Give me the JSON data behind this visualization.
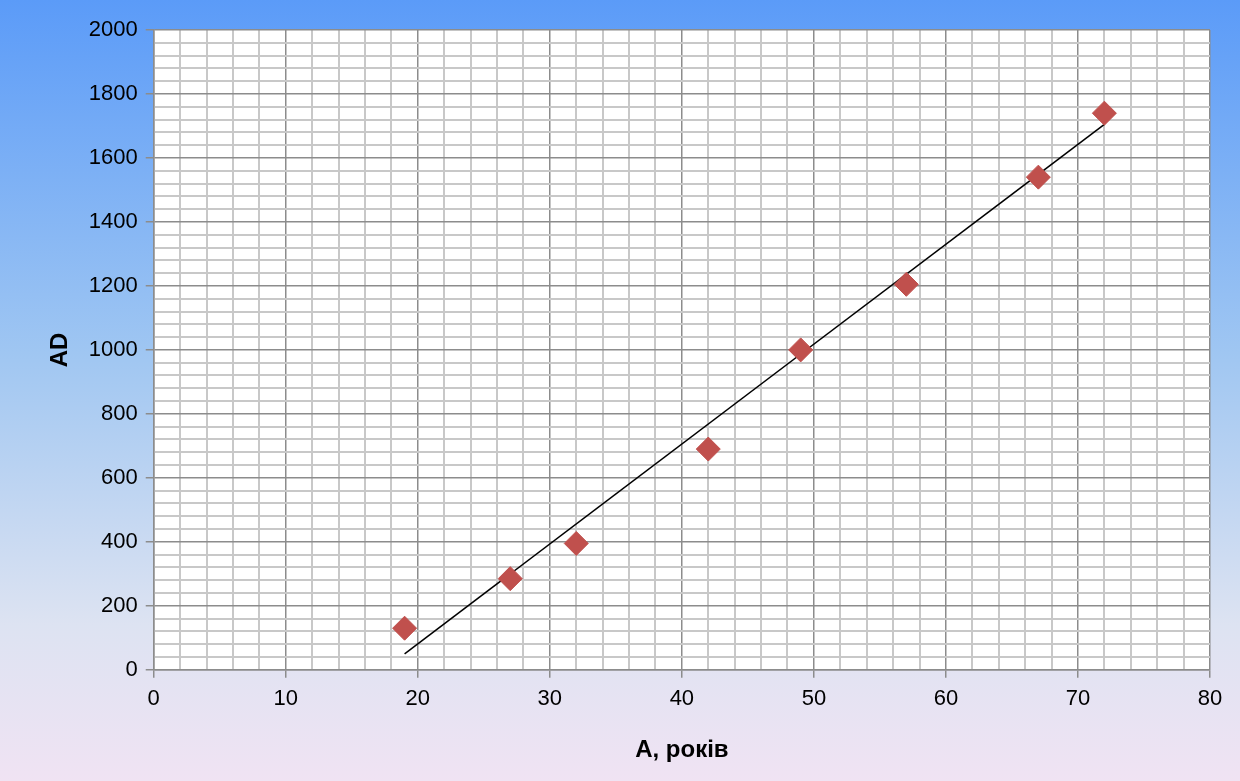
{
  "chart_data": {
    "type": "scatter",
    "xlabel": "A, років",
    "ylabel": "AD",
    "xlim": [
      0,
      80
    ],
    "ylim": [
      0,
      2000
    ],
    "xticks": [
      0,
      {
        "value": 2,
        "label": null
      },
      {
        "value": 4,
        "label": null
      },
      {
        "value": 6,
        "label": null
      },
      {
        "value": 8,
        "label": null
      },
      10,
      {
        "value": 12,
        "label": null
      },
      {
        "value": 14,
        "label": null
      },
      {
        "value": 16,
        "label": null
      },
      {
        "value": 18,
        "label": null
      },
      20,
      {
        "value": 22,
        "label": null
      },
      {
        "value": 24,
        "label": null
      },
      {
        "value": 26,
        "label": null
      },
      {
        "value": 28,
        "label": null
      },
      30,
      {
        "value": 32,
        "label": null
      },
      {
        "value": 34,
        "label": null
      },
      {
        "value": 36,
        "label": null
      },
      {
        "value": 38,
        "label": null
      },
      40,
      {
        "value": 42,
        "label": null
      },
      {
        "value": 44,
        "label": null
      },
      {
        "value": 46,
        "label": null
      },
      {
        "value": 48,
        "label": null
      },
      50,
      {
        "value": 52,
        "label": null
      },
      {
        "value": 54,
        "label": null
      },
      {
        "value": 56,
        "label": null
      },
      {
        "value": 58,
        "label": null
      },
      60,
      {
        "value": 62,
        "label": null
      },
      {
        "value": 64,
        "label": null
      },
      {
        "value": 66,
        "label": null
      },
      {
        "value": 68,
        "label": null
      },
      70,
      {
        "value": 72,
        "label": null
      },
      {
        "value": 74,
        "label": null
      },
      {
        "value": 76,
        "label": null
      },
      {
        "value": 78,
        "label": null
      },
      80
    ],
    "yticks": [
      0,
      {
        "value": 40,
        "label": null
      },
      {
        "value": 80,
        "label": null
      },
      {
        "value": 120,
        "label": null
      },
      {
        "value": 160,
        "label": null
      },
      200,
      {
        "value": 240,
        "label": null
      },
      {
        "value": 280,
        "label": null
      },
      {
        "value": 320,
        "label": null
      },
      {
        "value": 360,
        "label": null
      },
      400,
      {
        "value": 440,
        "label": null
      },
      {
        "value": 480,
        "label": null
      },
      {
        "value": 520,
        "label": null
      },
      {
        "value": 560,
        "label": null
      },
      600,
      {
        "value": 640,
        "label": null
      },
      {
        "value": 680,
        "label": null
      },
      {
        "value": 720,
        "label": null
      },
      {
        "value": 760,
        "label": null
      },
      800,
      {
        "value": 840,
        "label": null
      },
      {
        "value": 880,
        "label": null
      },
      {
        "value": 920,
        "label": null
      },
      {
        "value": 960,
        "label": null
      },
      1000,
      {
        "value": 1040,
        "label": null
      },
      {
        "value": 1080,
        "label": null
      },
      {
        "value": 1120,
        "label": null
      },
      {
        "value": 1160,
        "label": null
      },
      1200,
      {
        "value": 1240,
        "label": null
      },
      {
        "value": 1280,
        "label": null
      },
      {
        "value": 1320,
        "label": null
      },
      {
        "value": 1360,
        "label": null
      },
      1400,
      {
        "value": 1440,
        "label": null
      },
      {
        "value": 1480,
        "label": null
      },
      {
        "value": 1520,
        "label": null
      },
      {
        "value": 1560,
        "label": null
      },
      1600,
      {
        "value": 1640,
        "label": null
      },
      {
        "value": 1680,
        "label": null
      },
      {
        "value": 1720,
        "label": null
      },
      {
        "value": 1760,
        "label": null
      },
      1800,
      {
        "value": 1840,
        "label": null
      },
      {
        "value": 1880,
        "label": null
      },
      {
        "value": 1920,
        "label": null
      },
      {
        "value": 1960,
        "label": null
      },
      2000
    ],
    "grid": true,
    "marker": "diamond",
    "series": [
      {
        "color": "#c0504d",
        "x": [
          19,
          27,
          32,
          42,
          49,
          57,
          67,
          72
        ],
        "values": [
          130,
          285,
          395,
          690,
          1000,
          1205,
          1540,
          1740
        ]
      },
      {
        "type": "line",
        "color": "#000000",
        "marker": "none",
        "x": [
          19,
          72
        ],
        "values": [
          50,
          1705
        ]
      }
    ]
  }
}
